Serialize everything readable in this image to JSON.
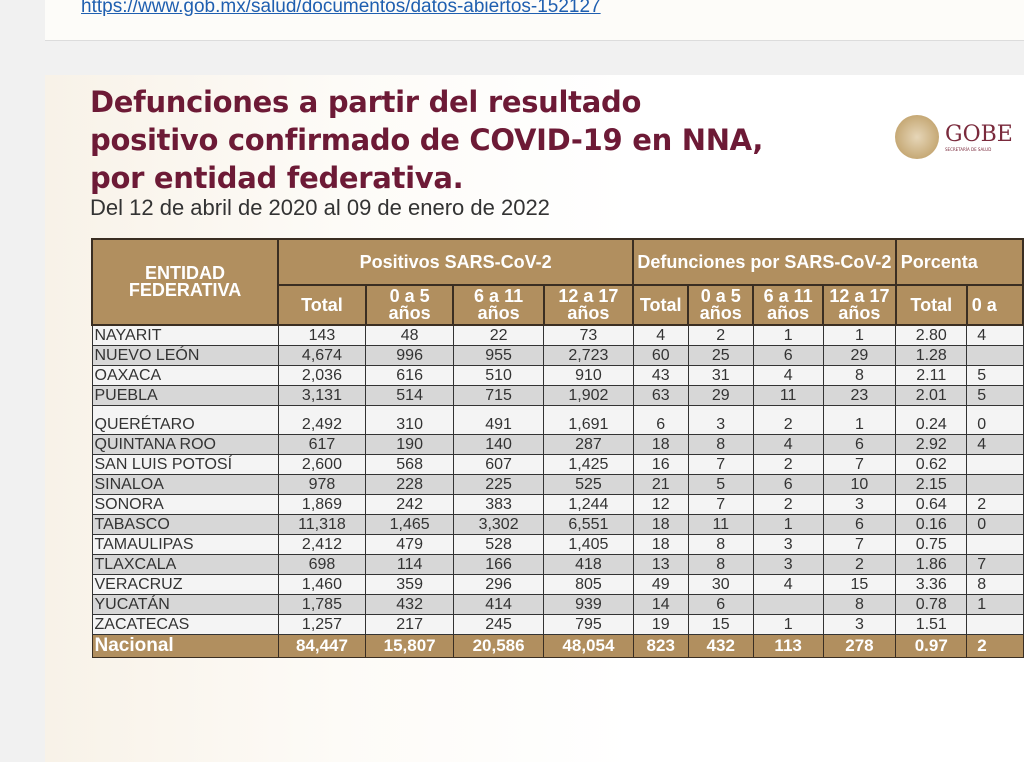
{
  "source_link": "https://www.gob.mx/salud/documentos/datos-abiertos-152127",
  "title_lines": [
    "Defunciones a partir del resultado",
    "positivo confirmado de COVID-19 en NNA,",
    "por entidad federativa."
  ],
  "subtitle": "Del 12 de abril de 2020 al 09 de enero de 2022",
  "logo": {
    "text": "GOBE",
    "subtext": "SECRETARÍA DE SALUD"
  },
  "table": {
    "header_entity": "ENTIDAD FEDERATIVA",
    "groups": [
      "Positivos SARS-CoV-2",
      "Defunciones por SARS-CoV-2",
      "Porcenta"
    ],
    "subheaders": [
      "Total",
      "0 a 5 años",
      "6 a 11 años",
      "12 a 17 años",
      "Total",
      "0 a 5 años",
      "6 a 11 años",
      "12 a 17 años",
      "Total",
      "0 a"
    ],
    "rows": [
      [
        "NAYARIT",
        "143",
        "48",
        "22",
        "73",
        "4",
        "2",
        "1",
        "1",
        "2.80",
        "4"
      ],
      [
        "NUEVO LEÓN",
        "4,674",
        "996",
        "955",
        "2,723",
        "60",
        "25",
        "6",
        "29",
        "1.28",
        ""
      ],
      [
        "OAXACA",
        "2,036",
        "616",
        "510",
        "910",
        "43",
        "31",
        "4",
        "8",
        "2.11",
        "5"
      ],
      [
        "PUEBLA",
        "3,131",
        "514",
        "715",
        "1,902",
        "63",
        "29",
        "11",
        "23",
        "2.01",
        "5"
      ],
      [
        "QUERÉTARO",
        "2,492",
        "310",
        "491",
        "1,691",
        "6",
        "3",
        "2",
        "1",
        "0.24",
        "0"
      ],
      [
        "QUINTANA ROO",
        "617",
        "190",
        "140",
        "287",
        "18",
        "8",
        "4",
        "6",
        "2.92",
        "4"
      ],
      [
        "SAN LUIS POTOSÍ",
        "2,600",
        "568",
        "607",
        "1,425",
        "16",
        "7",
        "2",
        "7",
        "0.62",
        ""
      ],
      [
        "SINALOA",
        "978",
        "228",
        "225",
        "525",
        "21",
        "5",
        "6",
        "10",
        "2.15",
        ""
      ],
      [
        "SONORA",
        "1,869",
        "242",
        "383",
        "1,244",
        "12",
        "7",
        "2",
        "3",
        "0.64",
        "2"
      ],
      [
        "TABASCO",
        "11,318",
        "1,465",
        "3,302",
        "6,551",
        "18",
        "11",
        "1",
        "6",
        "0.16",
        "0"
      ],
      [
        "TAMAULIPAS",
        "2,412",
        "479",
        "528",
        "1,405",
        "18",
        "8",
        "3",
        "7",
        "0.75",
        ""
      ],
      [
        "TLAXCALA",
        "698",
        "114",
        "166",
        "418",
        "13",
        "8",
        "3",
        "2",
        "1.86",
        "7"
      ],
      [
        "VERACRUZ",
        "1,460",
        "359",
        "296",
        "805",
        "49",
        "30",
        "4",
        "15",
        "3.36",
        "8"
      ],
      [
        "YUCATÁN",
        "1,785",
        "432",
        "414",
        "939",
        "14",
        "6",
        "",
        "8",
        "0.78",
        "1"
      ],
      [
        "ZACATECAS",
        "1,257",
        "217",
        "245",
        "795",
        "19",
        "15",
        "1",
        "3",
        "1.51",
        ""
      ]
    ],
    "total": [
      "Nacional",
      "84,447",
      "15,807",
      "20,586",
      "48,054",
      "823",
      "432",
      "113",
      "278",
      "0.97",
      "2"
    ]
  }
}
